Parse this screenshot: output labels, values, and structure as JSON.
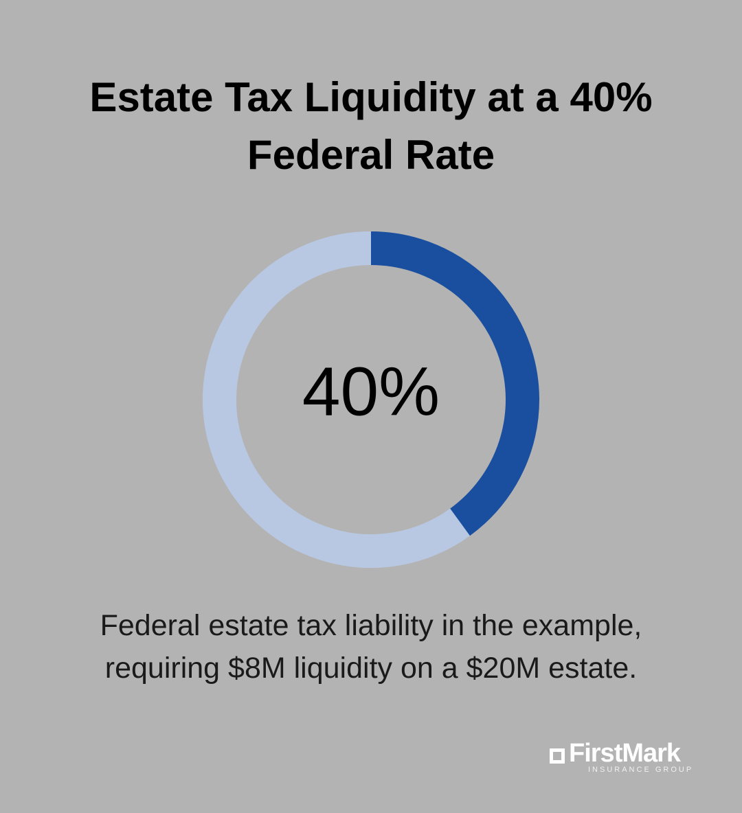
{
  "chart_data": {
    "type": "donut",
    "title": "Estate Tax Liquidity at a 40% Federal Rate",
    "values": [
      40,
      60
    ],
    "value_labels": [
      "40%",
      null
    ],
    "colors": [
      "#1a4fa0",
      "#b8c8e2"
    ],
    "caption": "Federal estate tax liability in the example, requiring $8M liquidity on a $20M estate."
  },
  "logo": {
    "name": "FirstMark",
    "tagline": "INSURANCE GROUP"
  }
}
